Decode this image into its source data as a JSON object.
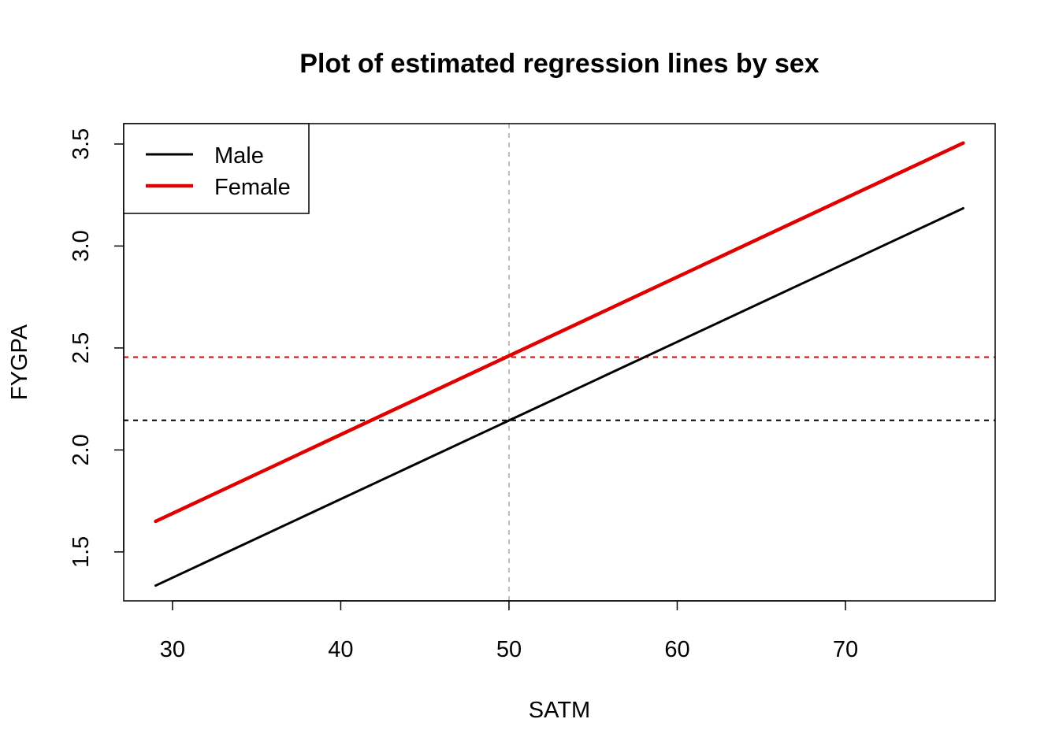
{
  "chart_data": {
    "type": "line",
    "title": "Plot of estimated regression lines by sex",
    "xlabel": "SATM",
    "ylabel": "FYGPA",
    "xlim": [
      27.1,
      78.9
    ],
    "ylim": [
      1.26,
      3.6
    ],
    "x_ticks": [
      30,
      40,
      50,
      60,
      70
    ],
    "y_ticks": [
      1.5,
      2.0,
      2.5,
      3.0,
      3.5
    ],
    "x_tick_labels": [
      "30",
      "40",
      "50",
      "60",
      "70"
    ],
    "y_tick_labels": [
      "1.5",
      "2.0",
      "2.5",
      "3.0",
      "3.5"
    ],
    "grid": false,
    "legend_position": "top-left",
    "series": [
      {
        "name": "Male",
        "color": "#000000",
        "x": [
          29,
          77
        ],
        "y": [
          1.335,
          3.185
        ]
      },
      {
        "name": "Female",
        "color": "#e00000",
        "x": [
          29,
          77
        ],
        "y": [
          1.65,
          3.505
        ]
      }
    ],
    "reference_lines": [
      {
        "orientation": "vertical",
        "x": 50,
        "color": "#bebebe",
        "style": "dashed"
      },
      {
        "orientation": "horizontal",
        "y": 2.455,
        "color": "#e00000",
        "style": "dashed"
      },
      {
        "orientation": "horizontal",
        "y": 2.145,
        "color": "#000000",
        "style": "dashed"
      }
    ]
  }
}
